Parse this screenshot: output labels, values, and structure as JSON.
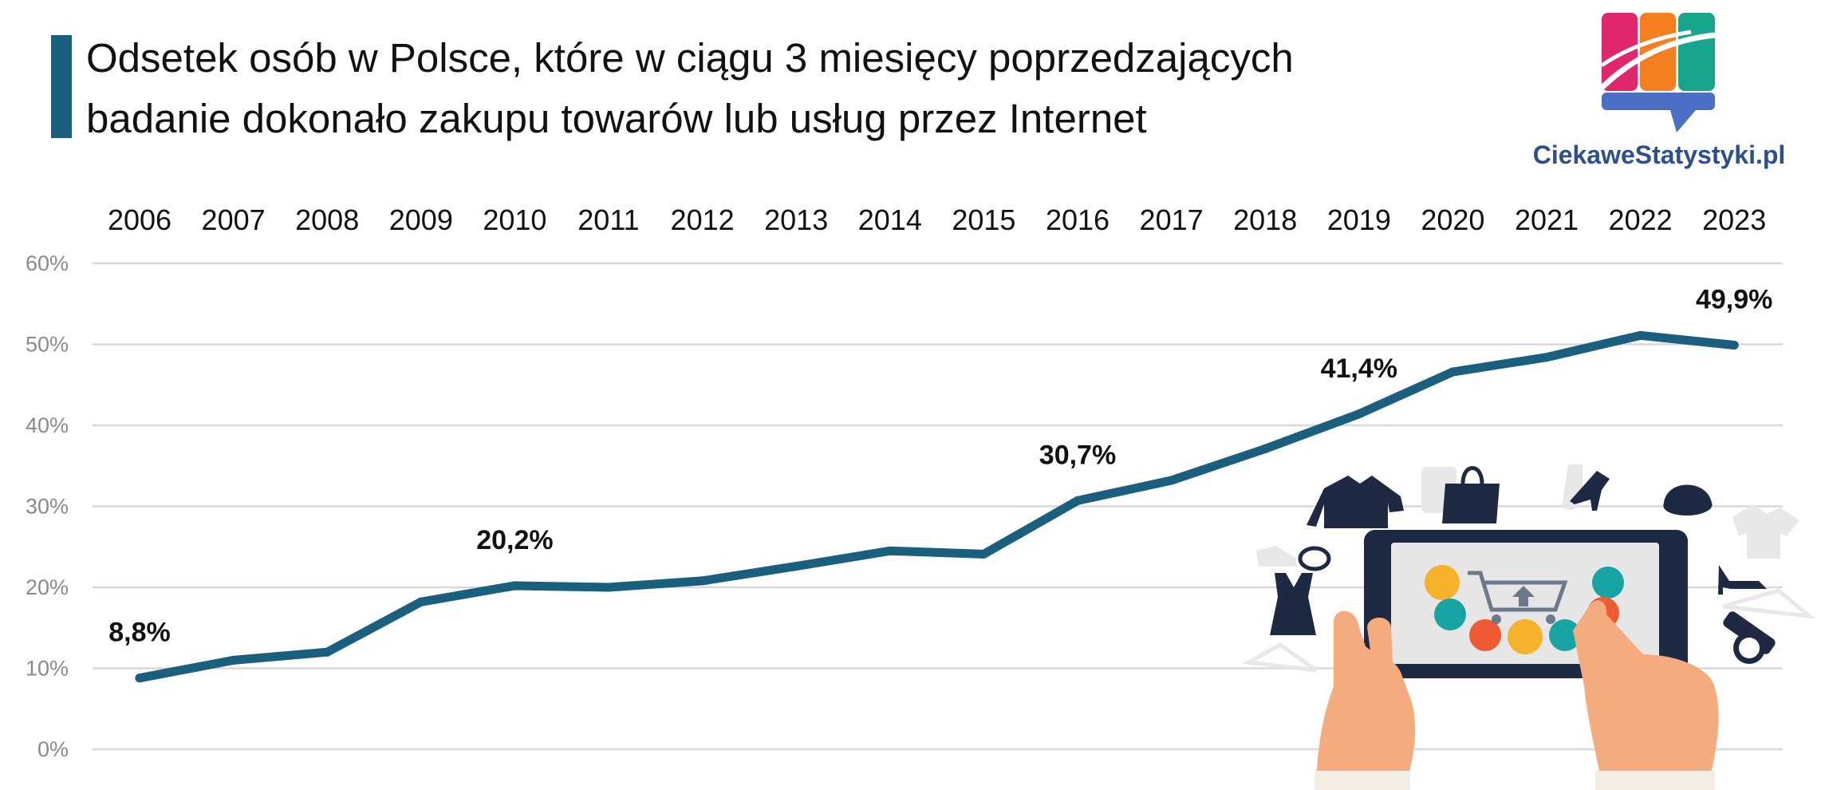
{
  "header": {
    "title_line1": "Odsetek osób w Polsce, które w ciągu 3 miesięcy poprzedzających",
    "title_line2": "badanie dokonało zakupu towarów lub usług przez Internet",
    "accent_color": "#1b5f7e"
  },
  "brand": {
    "name": "CiekaweStatystyki.pl",
    "color": "#2d4f8e",
    "logo_colors": [
      "#e0266d",
      "#f47f20",
      "#17a58c",
      "#4a6fc4"
    ]
  },
  "chart_data": {
    "type": "line",
    "title": "Odsetek osób w Polsce, które w ciągu 3 miesięcy poprzedzających badanie dokonało zakupu towarów lub usług przez Internet",
    "categories": [
      "2006",
      "2007",
      "2008",
      "2009",
      "2010",
      "2011",
      "2012",
      "2013",
      "2014",
      "2015",
      "2016",
      "2017",
      "2018",
      "2019",
      "2020",
      "2021",
      "2022",
      "2023"
    ],
    "values": [
      8.8,
      11.0,
      12.0,
      18.2,
      20.2,
      20.0,
      20.8,
      22.6,
      24.5,
      24.1,
      30.7,
      33.2,
      37.1,
      41.4,
      46.6,
      48.4,
      51.1,
      49.9
    ],
    "ylim": [
      0,
      60
    ],
    "yticks": [
      "0%",
      "10%",
      "20%",
      "30%",
      "40%",
      "50%",
      "60%"
    ],
    "ytick_values": [
      0,
      10,
      20,
      30,
      40,
      50,
      60
    ],
    "x_axis_position": "top",
    "grid": true,
    "line_color": "#1b5f7e",
    "annotations": [
      {
        "category": "2006",
        "label": "8,8%"
      },
      {
        "category": "2010",
        "label": "20,2%"
      },
      {
        "category": "2016",
        "label": "30,7%"
      },
      {
        "category": "2019",
        "label": "41,4%"
      },
      {
        "category": "2023",
        "label": "49,9%"
      }
    ]
  },
  "illustration": {
    "name": "tablet-shopping-illustration",
    "colors": {
      "navy": "#1e2a44",
      "skin": "#f4ac7e",
      "screen": "#e6e6e6",
      "icon_colors": [
        "#f5b22a",
        "#18a3a4",
        "#f05a32",
        "#1b5f7e"
      ],
      "ghost": "#e6e6e6"
    }
  }
}
